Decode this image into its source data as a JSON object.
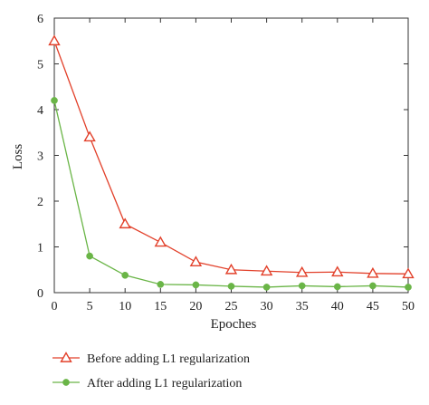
{
  "chart_data": {
    "type": "line",
    "title": "",
    "xlabel": "Epoches",
    "ylabel": "Loss",
    "xlim": [
      0,
      50
    ],
    "ylim": [
      0,
      6
    ],
    "xticks": [
      0,
      5,
      10,
      15,
      20,
      25,
      30,
      35,
      40,
      45,
      50
    ],
    "yticks": [
      0,
      1,
      2,
      3,
      4,
      5,
      6
    ],
    "grid": false,
    "legend_position": "bottom",
    "x": [
      0,
      5,
      10,
      15,
      20,
      25,
      30,
      35,
      40,
      45,
      50
    ],
    "series": [
      {
        "name": "Before adding L1 regularization",
        "marker": "triangle-open",
        "color": "#e2402a",
        "values": [
          5.5,
          3.4,
          1.5,
          1.1,
          0.67,
          0.5,
          0.47,
          0.44,
          0.45,
          0.42,
          0.41
        ]
      },
      {
        "name": "After adding L1 regularization",
        "marker": "circle-filled",
        "color": "#6ab547",
        "values": [
          4.2,
          0.8,
          0.38,
          0.18,
          0.17,
          0.14,
          0.12,
          0.15,
          0.13,
          0.15,
          0.12
        ]
      }
    ]
  }
}
